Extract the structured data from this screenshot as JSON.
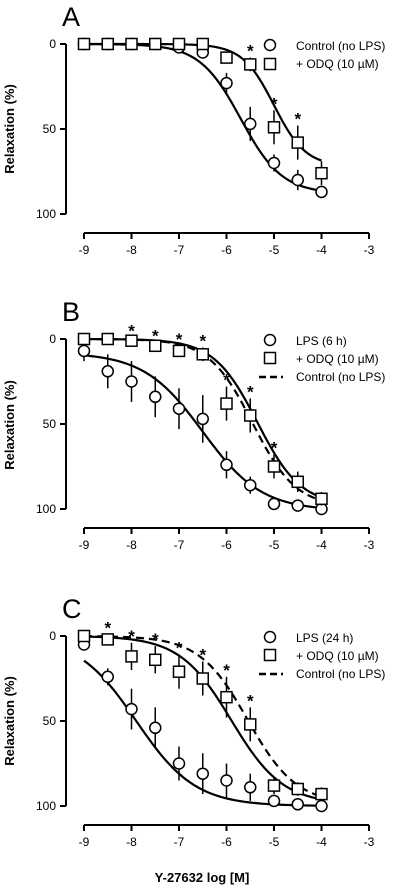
{
  "chart_data": [
    {
      "panel_label": "A",
      "type": "scatter",
      "xlabel": "",
      "ylabel": "Relaxation (%)",
      "xlim": [
        -9,
        -3
      ],
      "ylim": [
        0,
        100
      ],
      "y_inverted": true,
      "xticks": [
        "-9",
        "-8",
        "-7",
        "-6",
        "-5",
        "-4",
        "-3"
      ],
      "yticks": [
        "0",
        "50",
        "100"
      ],
      "legend": {
        "position": "top-right",
        "entries": [
          "Control (no LPS)",
          "+ ODQ (10 µM)"
        ]
      },
      "series": [
        {
          "name": "Control (no LPS)",
          "marker": "circle",
          "x": [
            -9,
            -8.5,
            -8,
            -7.5,
            -7,
            -6.5,
            -6,
            -5.5,
            -5,
            -4.5,
            -4
          ],
          "y": [
            0,
            0,
            0,
            0,
            2,
            5,
            23,
            47,
            70,
            80,
            87
          ],
          "err": [
            1,
            1,
            1,
            1,
            2,
            3,
            6,
            10,
            5,
            6,
            3
          ]
        },
        {
          "name": "+ ODQ (10 µM)",
          "marker": "square",
          "x": [
            -9,
            -8.5,
            -8,
            -7.5,
            -7,
            -6.5,
            -6,
            -5.5,
            -5,
            -4.5,
            -4
          ],
          "y": [
            0,
            0,
            0,
            0,
            0,
            0,
            8,
            12,
            49,
            58,
            76
          ],
          "err": [
            1,
            1,
            1,
            1,
            1,
            1,
            3,
            4,
            10,
            10,
            7
          ]
        }
      ],
      "fits": [
        {
          "name": "Control (no LPS)",
          "style": "solid",
          "bottom": 0,
          "top": 88,
          "logEC50": -5.7,
          "hill": 1.0
        },
        {
          "name": "+ ODQ (10 µM)",
          "style": "solid",
          "bottom": 0,
          "top": 72,
          "logEC50": -5.0,
          "hill": 1.3
        }
      ],
      "significance": {
        "marker": "*",
        "x": [
          -5.5,
          -5,
          -4.5
        ]
      }
    },
    {
      "panel_label": "B",
      "type": "scatter",
      "xlabel": "",
      "ylabel": "Relaxation (%)",
      "xlim": [
        -9,
        -3
      ],
      "ylim": [
        0,
        100
      ],
      "y_inverted": true,
      "xticks": [
        "-9",
        "-8",
        "-7",
        "-6",
        "-5",
        "-4",
        "-3"
      ],
      "yticks": [
        "0",
        "50",
        "100"
      ],
      "legend": {
        "position": "top-right",
        "entries": [
          "LPS (6 h)",
          "+ ODQ (10 µM)",
          "Control (no LPS)"
        ]
      },
      "series": [
        {
          "name": "LPS (6 h)",
          "marker": "circle",
          "x": [
            -9,
            -8.5,
            -8,
            -7.5,
            -7,
            -6.5,
            -6,
            -5.5,
            -5,
            -4.5,
            -4
          ],
          "y": [
            7,
            19,
            25,
            34,
            41,
            47,
            74,
            86,
            97,
            98,
            100
          ],
          "err": [
            6,
            10,
            12,
            12,
            12,
            14,
            8,
            5,
            3,
            2,
            2
          ]
        },
        {
          "name": "+ ODQ (10 µM)",
          "marker": "square",
          "x": [
            -9,
            -8.5,
            -8,
            -7.5,
            -7,
            -6.5,
            -6,
            -5.5,
            -5,
            -4.5,
            -4
          ],
          "y": [
            0,
            0,
            1,
            4,
            7,
            9,
            38,
            45,
            75,
            84,
            94
          ],
          "err": [
            1,
            1,
            2,
            2,
            3,
            4,
            10,
            10,
            7,
            6,
            4
          ]
        }
      ],
      "fits": [
        {
          "name": "LPS (6 h)",
          "style": "solid",
          "bottom": 8,
          "top": 101,
          "logEC50": -6.5,
          "hill": 0.7
        },
        {
          "name": "+ ODQ (10 µM)",
          "style": "solid",
          "bottom": 0,
          "top": 98,
          "logEC50": -5.35,
          "hill": 0.95
        },
        {
          "name": "Control (no LPS)",
          "style": "dashed",
          "bottom": 0,
          "top": 99,
          "logEC50": -5.45,
          "hill": 0.95
        }
      ],
      "significance": {
        "marker": "*",
        "x": [
          -8,
          -7.5,
          -7,
          -6.5,
          -6,
          -5.5,
          -5
        ]
      }
    },
    {
      "panel_label": "C",
      "type": "scatter",
      "xlabel": "Y-27632 log [M]",
      "ylabel": "Relaxation (%)",
      "xlim": [
        -9,
        -3
      ],
      "ylim": [
        0,
        100
      ],
      "y_inverted": true,
      "xticks": [
        "-9",
        "-8",
        "-7",
        "-6",
        "-5",
        "-4",
        "-3"
      ],
      "yticks": [
        "0",
        "50",
        "100"
      ],
      "legend": {
        "position": "top-right",
        "entries": [
          "LPS (24 h)",
          "+ ODQ (10 µM)",
          "Control (no LPS)"
        ]
      },
      "series": [
        {
          "name": "LPS (24 h)",
          "marker": "circle",
          "x": [
            -9,
            -8.5,
            -8,
            -7.5,
            -7,
            -6.5,
            -6,
            -5.5,
            -5,
            -4.5,
            -4
          ],
          "y": [
            5,
            24,
            43,
            54,
            75,
            81,
            85,
            89,
            97,
            99,
            100
          ],
          "err": [
            2,
            5,
            12,
            12,
            10,
            12,
            10,
            8,
            3,
            2,
            2
          ]
        },
        {
          "name": "+ ODQ (10 µM)",
          "marker": "square",
          "x": [
            -9,
            -8.5,
            -8,
            -7.5,
            -7,
            -6.5,
            -6,
            -5.5,
            -5,
            -4.5,
            -4
          ],
          "y": [
            0,
            2,
            12,
            14,
            21,
            25,
            36,
            52,
            88,
            90,
            93
          ],
          "err": [
            1,
            3,
            8,
            8,
            10,
            10,
            12,
            10,
            5,
            4,
            4
          ]
        }
      ],
      "fits": [
        {
          "name": "LPS (24 h)",
          "style": "solid",
          "bottom": 0,
          "top": 100,
          "logEC50": -7.9,
          "hill": 0.7
        },
        {
          "name": "+ ODQ (10 µM)",
          "style": "solid",
          "bottom": 0,
          "top": 99,
          "logEC50": -5.9,
          "hill": 0.8
        },
        {
          "name": "Control (no LPS)",
          "style": "dashed",
          "bottom": 0,
          "top": 99,
          "logEC50": -5.55,
          "hill": 0.85
        }
      ],
      "significance": {
        "marker": "*",
        "x": [
          -8.5,
          -8,
          -7.5,
          -7,
          -6.5,
          -6,
          -5.5
        ]
      }
    }
  ],
  "figure": {
    "ylabel": "Relaxation (%)",
    "xlabel": "Y-27632 log [M]",
    "colors": {
      "ink": "#000000",
      "marker_fill": "#ffffff"
    }
  }
}
